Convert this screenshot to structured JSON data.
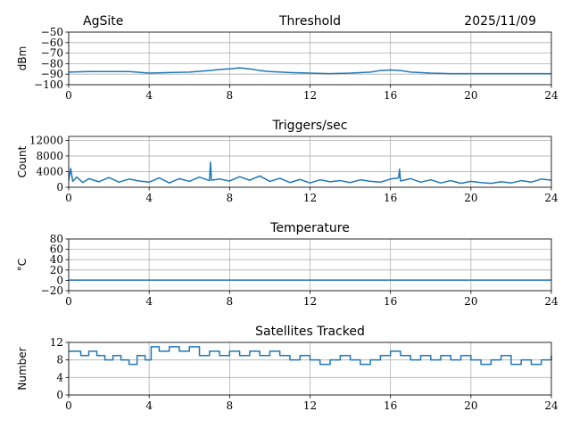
{
  "header": {
    "site": "AgSite",
    "date": "2025/11/09"
  },
  "chart_data": [
    {
      "type": "line",
      "title": "Threshold",
      "ylabel": "dBm",
      "xlim": [
        0,
        24
      ],
      "ylim": [
        -100,
        -50
      ],
      "xticks": [
        0,
        4,
        8,
        12,
        16,
        20,
        24
      ],
      "yticks": [
        -100,
        -90,
        -80,
        -70,
        -60,
        -50
      ],
      "color": "#1f77b4",
      "series": [
        {
          "x": [
            0,
            1,
            2,
            3,
            4,
            5,
            6,
            7,
            7.5,
            8,
            8.5,
            9,
            9.5,
            10,
            11,
            12,
            13,
            14,
            15,
            15.5,
            16,
            16.5,
            17,
            18,
            19,
            20,
            21,
            22,
            23,
            24
          ],
          "values": [
            -88,
            -87.5,
            -87.5,
            -87.5,
            -89,
            -88.5,
            -88,
            -86.5,
            -85.5,
            -85,
            -84,
            -85,
            -86.5,
            -87.5,
            -88.5,
            -89,
            -89.5,
            -89,
            -88,
            -86.5,
            -86,
            -86.5,
            -88,
            -89,
            -89.5,
            -89.5,
            -89.5,
            -89.5,
            -89.5,
            -89.5
          ]
        }
      ]
    },
    {
      "type": "line",
      "title": "Triggers/sec",
      "ylabel": "Count",
      "xlim": [
        0,
        24
      ],
      "ylim": [
        0,
        13000
      ],
      "xticks": [
        0,
        4,
        8,
        12,
        16,
        20,
        24
      ],
      "yticks": [
        0,
        4000,
        8000,
        12000
      ],
      "color": "#1f77b4",
      "series": [
        {
          "x": [
            0,
            0.1,
            0.2,
            0.4,
            0.7,
            1,
            1.5,
            2,
            2.5,
            3,
            3.5,
            4,
            4.5,
            5,
            5.5,
            6,
            6.5,
            7,
            7.05,
            7.1,
            7.5,
            8,
            8.5,
            9,
            9.5,
            10,
            10.5,
            11,
            11.5,
            12,
            12.5,
            13,
            13.5,
            14,
            14.5,
            15,
            15.5,
            16,
            16.4,
            16.45,
            16.5,
            17,
            17.5,
            18,
            18.5,
            19,
            19.5,
            20,
            20.5,
            21,
            21.5,
            22,
            22.5,
            23,
            23.5,
            24
          ],
          "values": [
            1800,
            4800,
            1500,
            2600,
            1200,
            2200,
            1400,
            2500,
            1300,
            2100,
            1600,
            1300,
            2400,
            1100,
            2200,
            1500,
            2600,
            1700,
            6400,
            1800,
            2100,
            1600,
            2700,
            1800,
            2900,
            1500,
            2300,
            1200,
            2000,
            1100,
            1900,
            1400,
            1700,
            1200,
            1900,
            1500,
            1300,
            2100,
            2400,
            4600,
            1600,
            2200,
            1300,
            1900,
            1100,
            1700,
            1000,
            1500,
            1200,
            1000,
            1400,
            1100,
            1700,
            1300,
            2100,
            1800
          ]
        }
      ]
    },
    {
      "type": "line",
      "title": "Temperature",
      "ylabel": "°C",
      "xlim": [
        0,
        24
      ],
      "ylim": [
        -20,
        80
      ],
      "xticks": [
        0,
        4,
        8,
        12,
        16,
        20,
        24
      ],
      "yticks": [
        -20,
        0,
        20,
        40,
        60,
        80
      ],
      "color": "#1f77b4",
      "series": [
        {
          "x": [
            0,
            24
          ],
          "values": [
            0.5,
            0.5
          ]
        }
      ]
    },
    {
      "type": "line",
      "title": "Satellites Tracked",
      "ylabel": "Number",
      "xlim": [
        0,
        24
      ],
      "ylim": [
        0,
        12
      ],
      "xticks": [
        0,
        4,
        8,
        12,
        16,
        20,
        24
      ],
      "yticks": [
        0,
        4,
        8,
        12
      ],
      "color": "#1f77b4",
      "step": true,
      "series": [
        {
          "x": [
            0,
            0.6,
            1,
            1.4,
            1.8,
            2.2,
            2.6,
            3,
            3.4,
            3.8,
            4.1,
            4.5,
            5,
            5.5,
            6,
            6.5,
            7,
            7.5,
            8,
            8.5,
            9,
            9.5,
            10,
            10.5,
            11,
            11.5,
            12,
            12.5,
            13,
            13.5,
            14,
            14.5,
            15,
            15.5,
            16,
            16.5,
            17,
            17.5,
            18,
            18.5,
            19,
            19.5,
            20,
            20.5,
            21,
            21.5,
            22,
            22.5,
            23,
            23.5,
            24
          ],
          "values": [
            10,
            9,
            10,
            9,
            8,
            9,
            8,
            7,
            9,
            8,
            11,
            10,
            11,
            10,
            11,
            9,
            10,
            9,
            10,
            9,
            10,
            9,
            10,
            9,
            8,
            9,
            8,
            7,
            8,
            9,
            8,
            7,
            8,
            9,
            10,
            9,
            8,
            9,
            8,
            9,
            8,
            9,
            8,
            7,
            8,
            9,
            7,
            8,
            7,
            8,
            9
          ]
        }
      ]
    }
  ]
}
